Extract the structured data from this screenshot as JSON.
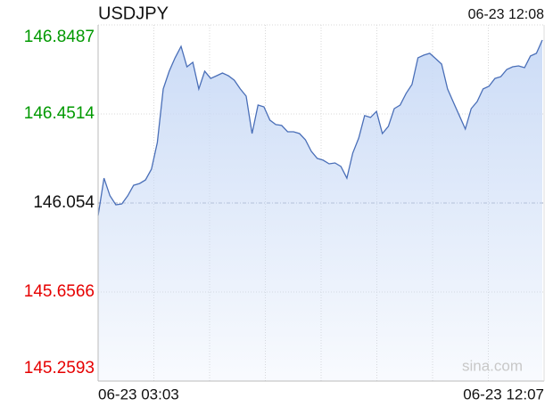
{
  "chart_data": {
    "type": "line",
    "title": "USDJPY",
    "timestamp": "06-23 12:08",
    "watermark": "sina.com",
    "x_labels": [
      "06-23 03:03",
      "06-23 12:07"
    ],
    "values": [
      145.998,
      146.165,
      146.086,
      146.046,
      146.05,
      146.086,
      146.133,
      146.141,
      146.157,
      146.205,
      146.324,
      146.563,
      146.642,
      146.702,
      146.753,
      146.662,
      146.682,
      146.563,
      146.642,
      146.61,
      146.622,
      146.634,
      146.622,
      146.602,
      146.563,
      146.531,
      146.364,
      146.491,
      146.483,
      146.424,
      146.404,
      146.4,
      146.372,
      146.372,
      146.364,
      146.336,
      146.285,
      146.253,
      146.245,
      146.229,
      146.233,
      146.217,
      146.165,
      146.277,
      146.344,
      146.444,
      146.436,
      146.463,
      146.364,
      146.396,
      146.475,
      146.491,
      146.543,
      146.583,
      146.702,
      146.714,
      146.722,
      146.698,
      146.674,
      146.563,
      146.503,
      146.444,
      146.384,
      146.475,
      146.507,
      146.563,
      146.575,
      146.61,
      146.618,
      146.65,
      146.662,
      146.666,
      146.658,
      146.71,
      146.722,
      146.781
    ],
    "color": "#4a6fb8",
    "fill_color": "#c9daf6",
    "ylim": [
      145.2593,
      146.8487
    ],
    "yticks": [
      146.8487,
      146.4514,
      146.054,
      145.6566,
      145.2593
    ],
    "prev_close": 146.054,
    "up_color": "#009900",
    "down_color": "#e60000",
    "grid": true
  }
}
